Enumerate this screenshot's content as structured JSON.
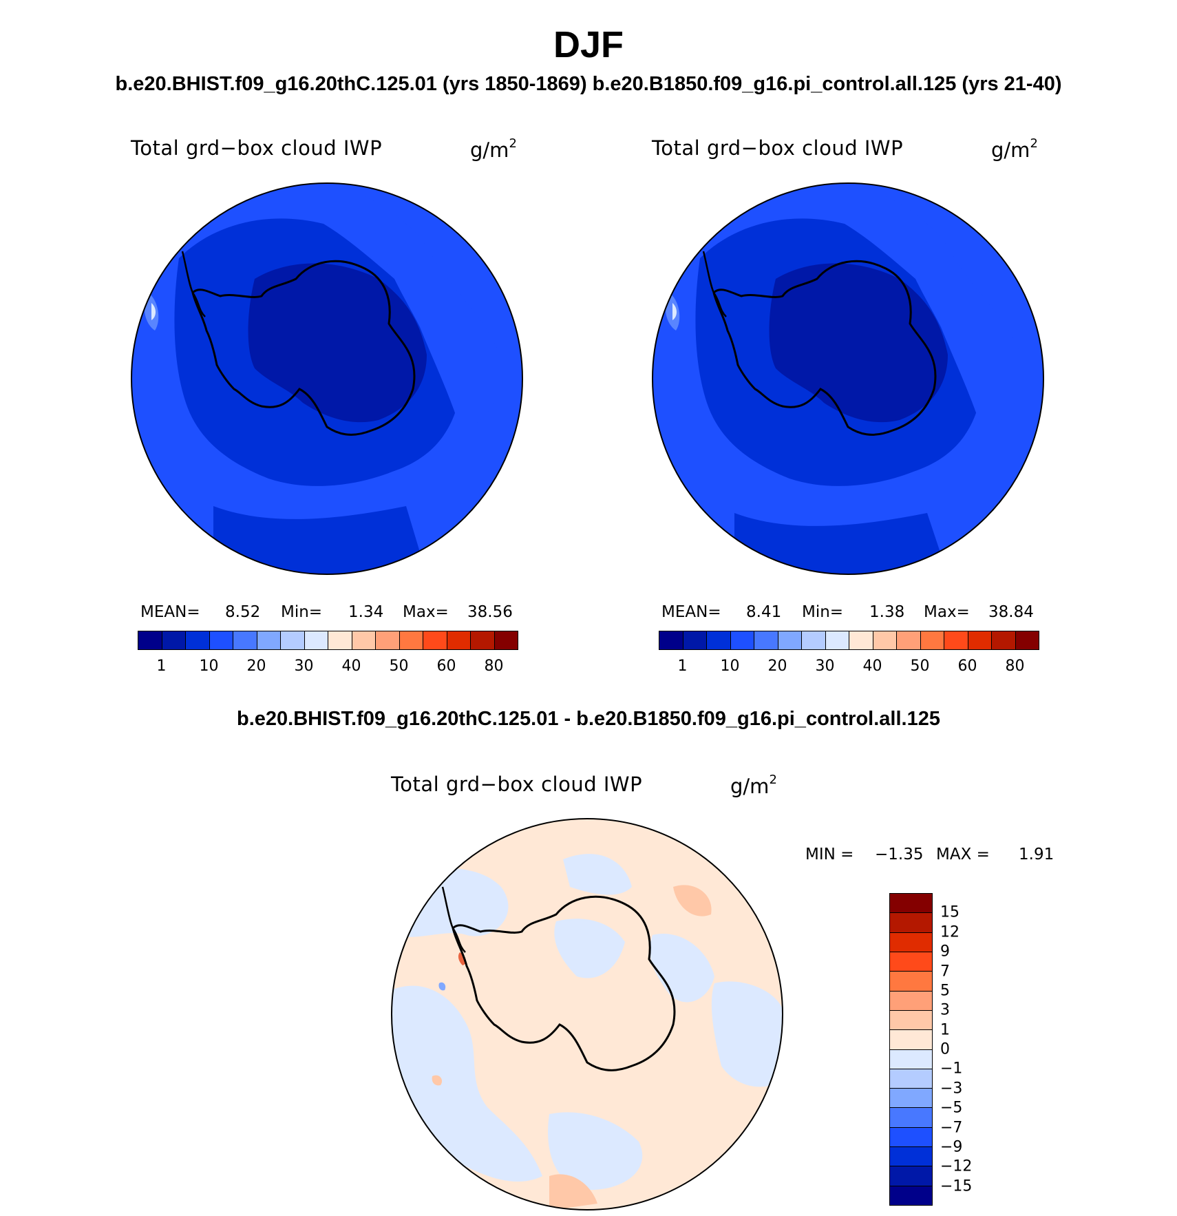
{
  "header": {
    "title": "DJF",
    "subtitle": "b.e20.BHIST.f09_g16.20thC.125.01 (yrs 1850-1869)  b.e20.B1850.f09_g16.pi_control.all.125 (yrs 21-40)",
    "diff_title": "b.e20.BHIST.f09_g16.20thC.125.01 - b.e20.B1850.f09_g16.pi_control.all.125"
  },
  "panels": [
    {
      "variable": "Total grd−box cloud IWP",
      "unit": "g/m",
      "unit_exp": "2",
      "mean_label": "MEAN=",
      "mean": "8.52",
      "min_label": "Min=",
      "min": "1.34",
      "max_label": "Max=",
      "max": "38.56"
    },
    {
      "variable": "Total grd−box cloud IWP",
      "unit": "g/m",
      "unit_exp": "2",
      "mean_label": "MEAN=",
      "mean": "8.41",
      "min_label": "Min=",
      "min": "1.38",
      "max_label": "Max=",
      "max": "38.84"
    }
  ],
  "diff_panel": {
    "variable": "Total grd−box cloud IWP",
    "unit": "g/m",
    "unit_exp": "2",
    "min_label": "MIN =",
    "min": "−1.35",
    "max_label": "MAX =",
    "max": "1.91"
  },
  "colorbar_top": {
    "colors": [
      "#00008a",
      "#0018a8",
      "#0030d8",
      "#1e50ff",
      "#4878ff",
      "#80a8ff",
      "#b4ccff",
      "#dce9ff",
      "#ffe8d6",
      "#ffc8a8",
      "#ffa078",
      "#ff7840",
      "#ff4a1a",
      "#e02c00",
      "#b41800",
      "#840000"
    ],
    "ticks": [
      "1",
      "10",
      "20",
      "30",
      "40",
      "50",
      "60",
      "80"
    ]
  },
  "colorbar_diff": {
    "colors": [
      "#840000",
      "#b41800",
      "#e02c00",
      "#ff4a1a",
      "#ff7840",
      "#ffa078",
      "#ffc8a8",
      "#ffe8d6",
      "#dce9ff",
      "#b4ccff",
      "#80a8ff",
      "#4878ff",
      "#1e50ff",
      "#0030d8",
      "#0018a8",
      "#00008a"
    ],
    "ticks": [
      "15",
      "12",
      "9",
      "7",
      "5",
      "3",
      "1",
      "0",
      "−1",
      "−3",
      "−5",
      "−7",
      "−9",
      "−12",
      "−15"
    ]
  }
}
